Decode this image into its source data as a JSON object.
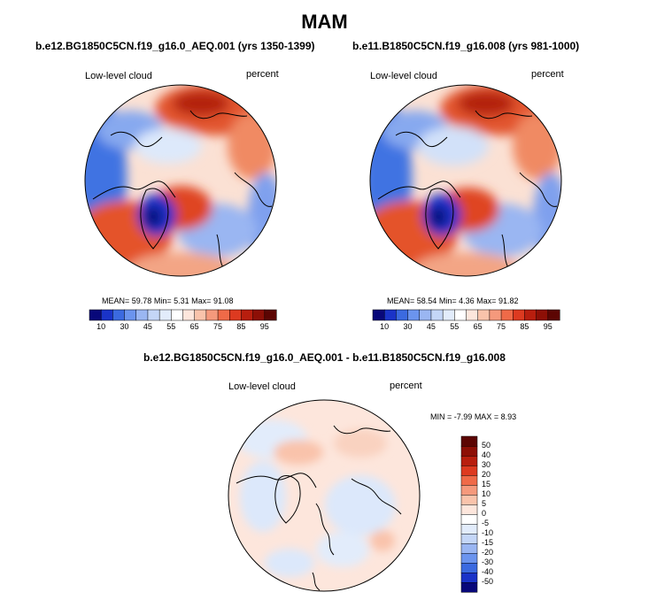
{
  "figure_title": "MAM",
  "chart_data": [
    {
      "type": "heatmap",
      "projection": "north-polar-stereographic",
      "title": "b.e12.BG1850C5CN.f19_g16.0_AEQ.001 (yrs 1350-1399)",
      "variable": "Low-level cloud",
      "units": "percent",
      "stats": {
        "mean_label": "MEAN=",
        "mean": "59.78",
        "min_label": "Min=",
        "min": "5.31",
        "max_label": "Max=",
        "max": "91.08"
      },
      "colorbar": {
        "orientation": "horizontal",
        "levels": [
          10,
          20,
          30,
          40,
          45,
          50,
          55,
          60,
          65,
          70,
          75,
          80,
          85,
          90,
          95
        ],
        "tick_labels": [
          "10",
          "30",
          "45",
          "55",
          "65",
          "75",
          "85",
          "95"
        ],
        "colors": [
          "#08087a",
          "#1a33c8",
          "#3b6ae0",
          "#6b94ee",
          "#9ab6f2",
          "#c4d6f7",
          "#e2ecfb",
          "#ffffff",
          "#fde6dc",
          "#f9c3ab",
          "#f5997c",
          "#ef6a48",
          "#dd3a20",
          "#b81e0e",
          "#8d0f06",
          "#5c0503"
        ]
      }
    },
    {
      "type": "heatmap",
      "projection": "north-polar-stereographic",
      "title": "b.e11.B1850C5CN.f19_g16.008 (yrs 981-1000)",
      "variable": "Low-level cloud",
      "units": "percent",
      "stats": {
        "mean_label": "MEAN=",
        "mean": "58.54",
        "min_label": "Min=",
        "min": "4.36",
        "max_label": "Max=",
        "max": "91.82"
      },
      "colorbar": {
        "orientation": "horizontal",
        "levels": [
          10,
          20,
          30,
          40,
          45,
          50,
          55,
          60,
          65,
          70,
          75,
          80,
          85,
          90,
          95
        ],
        "tick_labels": [
          "10",
          "30",
          "45",
          "55",
          "65",
          "75",
          "85",
          "95"
        ],
        "colors": [
          "#08087a",
          "#1a33c8",
          "#3b6ae0",
          "#6b94ee",
          "#9ab6f2",
          "#c4d6f7",
          "#e2ecfb",
          "#ffffff",
          "#fde6dc",
          "#f9c3ab",
          "#f5997c",
          "#ef6a48",
          "#dd3a20",
          "#b81e0e",
          "#8d0f06",
          "#5c0503"
        ]
      }
    },
    {
      "type": "heatmap",
      "projection": "north-polar-stereographic",
      "title": "b.e12.BG1850C5CN.f19_g16.0_AEQ.001 - b.e11.B1850C5CN.f19_g16.008",
      "variable": "Low-level cloud",
      "units": "percent",
      "stats": {
        "min_label": "MIN =",
        "min": "-7.99",
        "max_label": "MAX =",
        "max": "8.93"
      },
      "colorbar": {
        "orientation": "vertical",
        "levels": [
          -50,
          -40,
          -30,
          -20,
          -15,
          -10,
          -5,
          0,
          5,
          10,
          15,
          20,
          30,
          40,
          50
        ],
        "tick_labels": [
          "50",
          "40",
          "30",
          "20",
          "15",
          "10",
          "5",
          "0",
          "-5",
          "-10",
          "-15",
          "-20",
          "-30",
          "-40",
          "-50"
        ],
        "colors": [
          "#08087a",
          "#1a33c8",
          "#3b6ae0",
          "#6b94ee",
          "#9ab6f2",
          "#c4d6f7",
          "#e2ecfb",
          "#ffffff",
          "#fde6dc",
          "#f9c3ab",
          "#f5997c",
          "#ef6a48",
          "#dd3a20",
          "#b81e0e",
          "#8d0f06",
          "#5c0503"
        ]
      }
    }
  ]
}
